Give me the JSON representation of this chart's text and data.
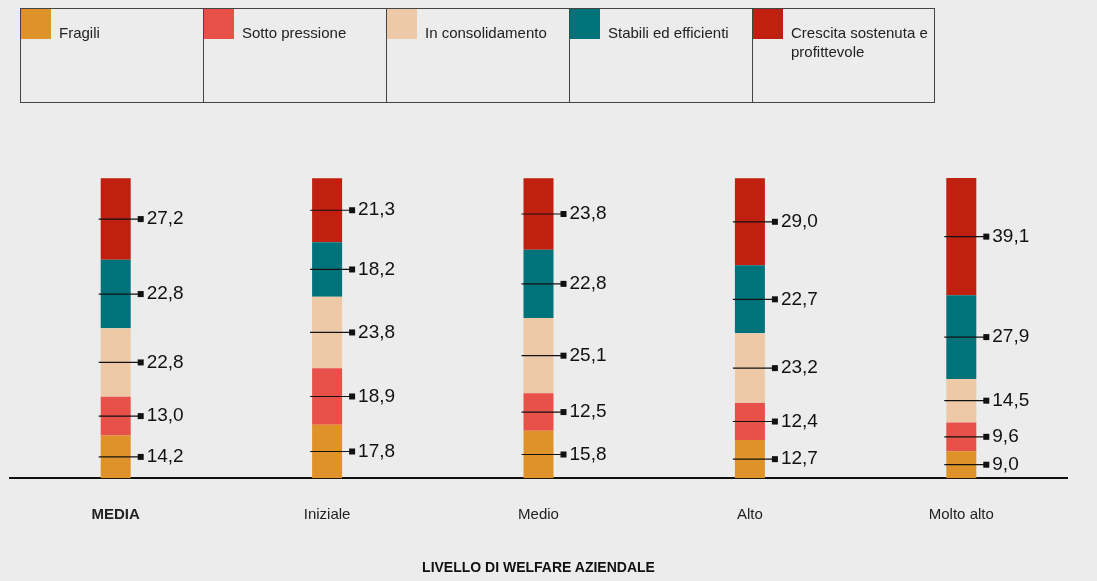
{
  "chart_data": {
    "type": "bar",
    "stacked": true,
    "categories": [
      "MEDIA",
      "Iniziale",
      "Medio",
      "Alto",
      "Molto alto"
    ],
    "xlabel": "LIVELLO DI WELFARE AZIENDALE",
    "ylim": [
      0,
      100.1
    ],
    "tick_labels": "x",
    "grid": false,
    "legend": "top",
    "series": [
      {
        "name": "Fragili",
        "color": "#e0922a",
        "values": [
          14.2,
          17.8,
          15.8,
          12.7,
          9.0
        ],
        "value_labels": [
          "14,2",
          "17,8",
          "15,8",
          "12,7",
          "9,0"
        ]
      },
      {
        "name": "Sotto pressione",
        "color": "#e8504a",
        "values": [
          13.0,
          18.9,
          12.5,
          12.4,
          9.6
        ],
        "value_labels": [
          "13,0",
          "18,9",
          "12,5",
          "12,4",
          "9,6"
        ]
      },
      {
        "name": "In consolidamento",
        "color": "#eec9a8",
        "values": [
          22.8,
          23.8,
          25.1,
          23.2,
          14.5
        ],
        "value_labels": [
          "22,8",
          "23,8",
          "25,1",
          "23,2",
          "14,5"
        ]
      },
      {
        "name": "Stabili ed efficienti",
        "color": "#00737a",
        "values": [
          22.8,
          18.2,
          22.8,
          22.7,
          27.9
        ],
        "value_labels": [
          "22,8",
          "18,2",
          "22,8",
          "22,7",
          "27,9"
        ]
      },
      {
        "name": "Crescita sostenuta e profittevole",
        "color": "#c0200f",
        "values": [
          27.2,
          21.3,
          23.8,
          29.0,
          39.1
        ],
        "value_labels": [
          "27,2",
          "21,3",
          "23,8",
          "29,0",
          "39,1"
        ]
      }
    ]
  }
}
